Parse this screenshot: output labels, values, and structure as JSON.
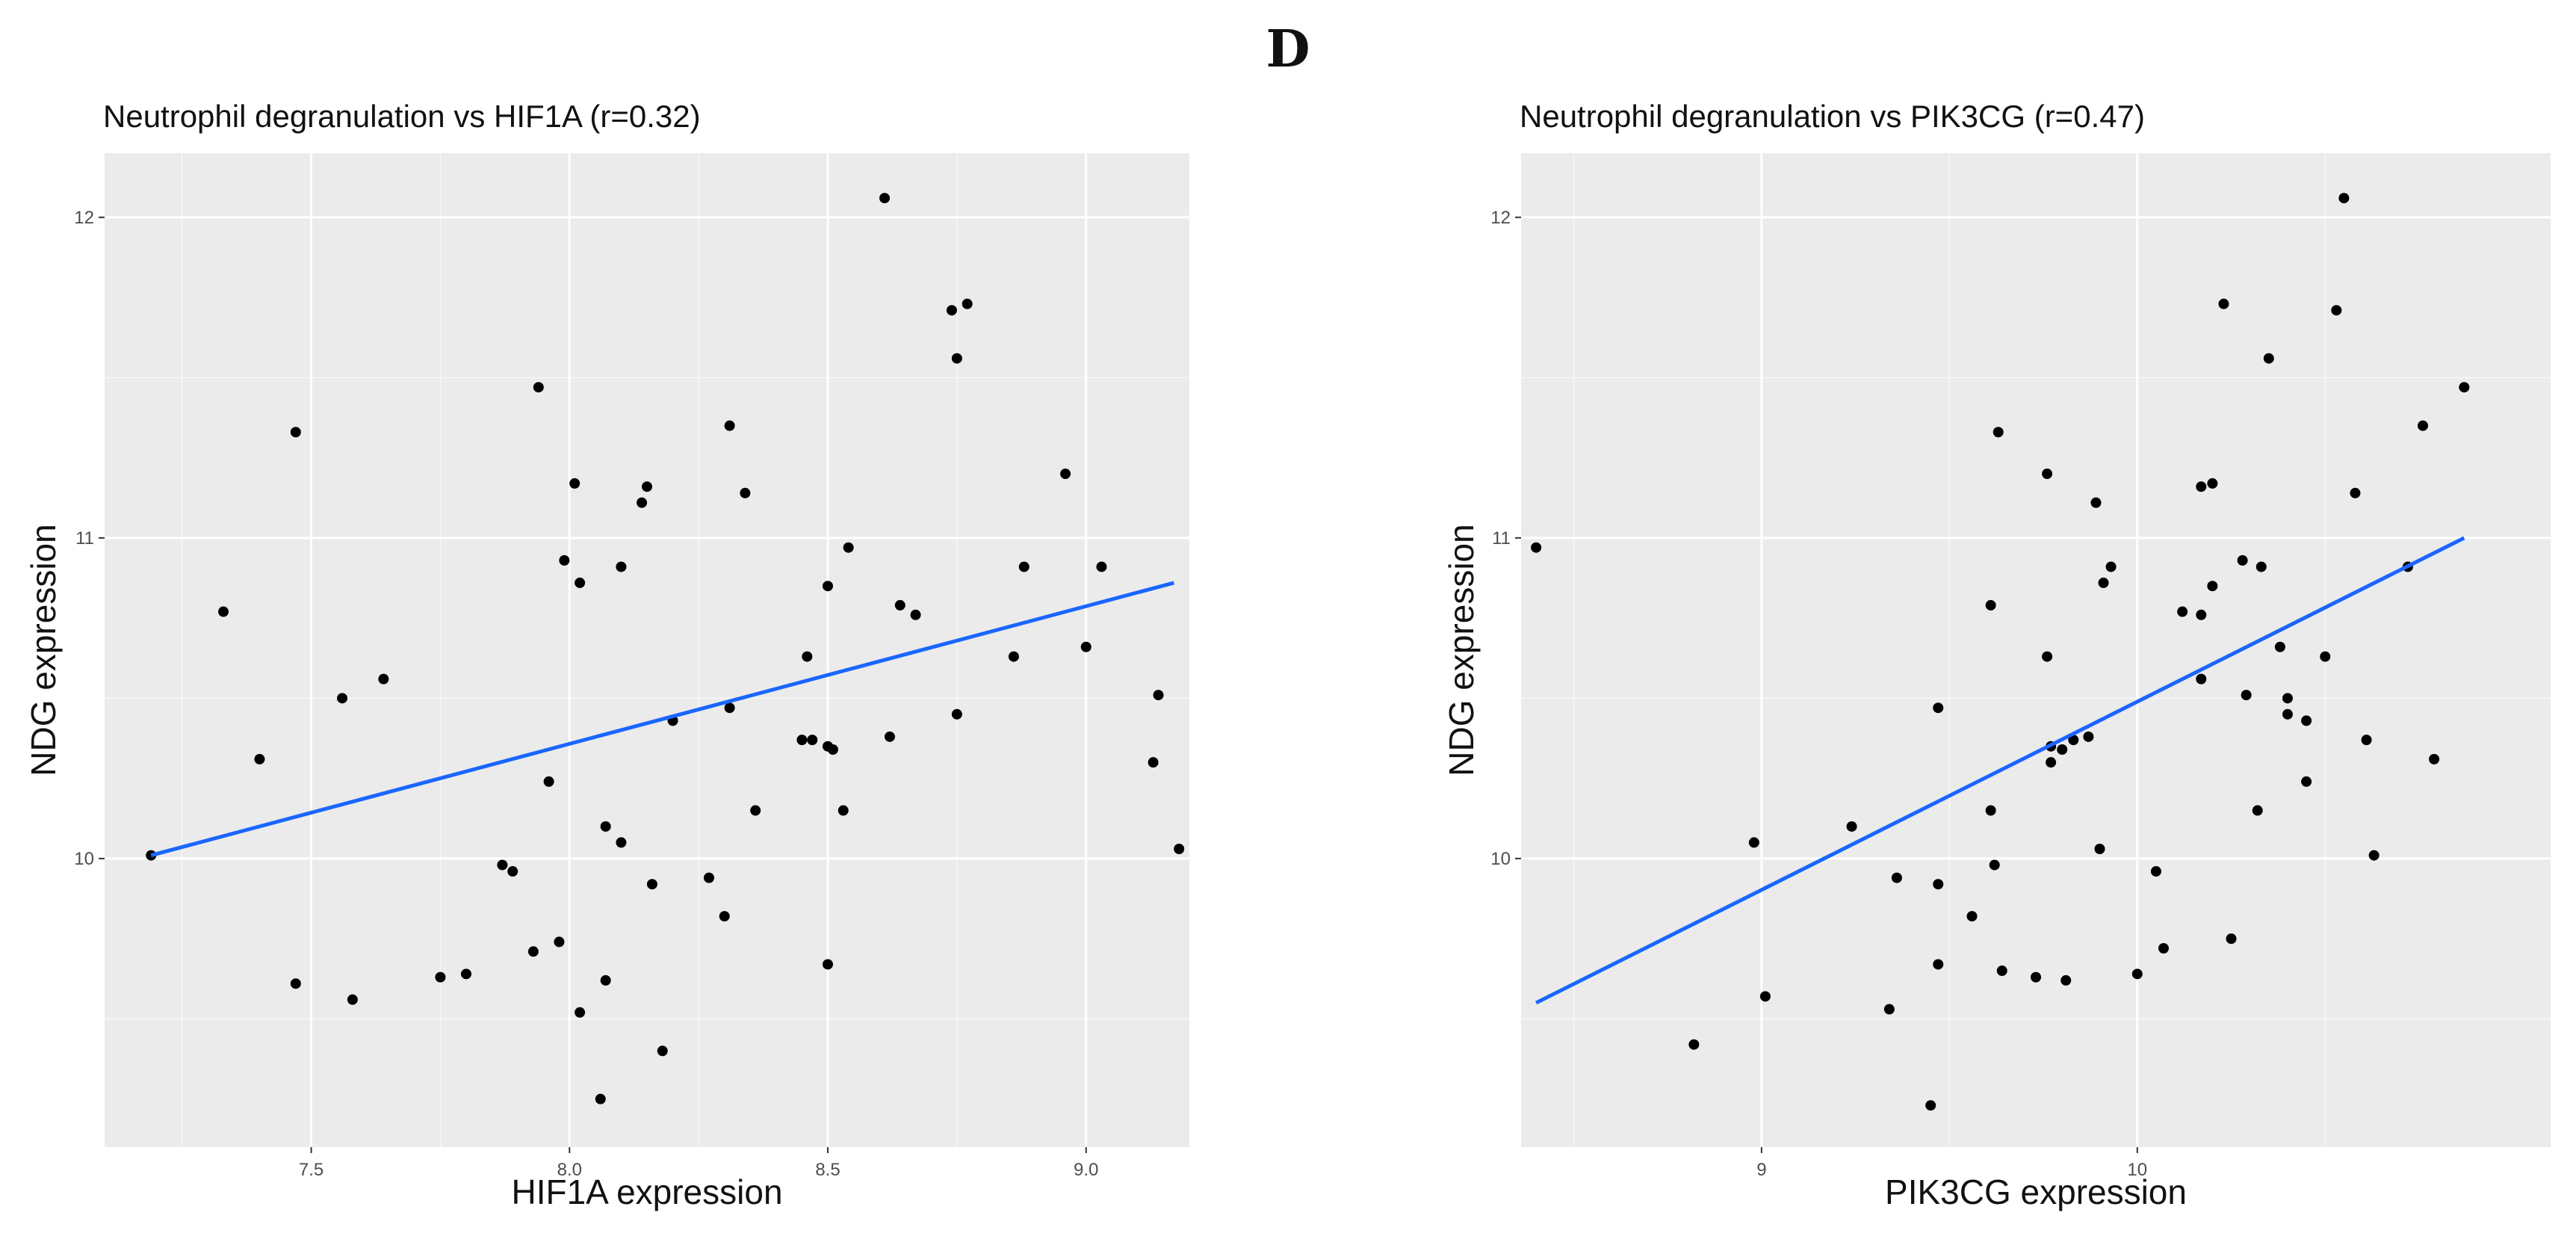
{
  "figure_label": "D",
  "chart_data": [
    {
      "type": "scatter",
      "title": "Neutrophil degranulation vs HIF1A (r=0.32)",
      "xlabel": "HIF1A expression",
      "ylabel": "NDG expression",
      "xlim": [
        7.1,
        9.2
      ],
      "ylim": [
        9.1,
        12.2
      ],
      "xticks": [
        7.5,
        8.0,
        8.5,
        9.0
      ],
      "xtick_labels": [
        "7.5",
        "8.0",
        "8.5",
        "9.0"
      ],
      "yticks": [
        10,
        11,
        12
      ],
      "ytick_labels": [
        "10",
        "11",
        "12"
      ],
      "grid": true,
      "background": "#ebebeb",
      "line_color": "#1a66ff",
      "fit_line": [
        [
          7.19,
          10.01
        ],
        [
          9.17,
          10.86
        ]
      ],
      "points": [
        [
          7.19,
          10.01
        ],
        [
          7.33,
          10.77
        ],
        [
          7.4,
          10.31
        ],
        [
          7.47,
          11.33
        ],
        [
          7.47,
          9.61
        ],
        [
          7.56,
          10.5
        ],
        [
          7.58,
          9.56
        ],
        [
          7.64,
          10.56
        ],
        [
          7.75,
          9.63
        ],
        [
          7.8,
          9.64
        ],
        [
          7.87,
          9.98
        ],
        [
          7.89,
          9.96
        ],
        [
          7.93,
          9.71
        ],
        [
          7.94,
          11.47
        ],
        [
          7.96,
          10.24
        ],
        [
          7.98,
          9.74
        ],
        [
          7.99,
          10.93
        ],
        [
          8.01,
          11.17
        ],
        [
          8.02,
          10.86
        ],
        [
          8.02,
          9.52
        ],
        [
          8.06,
          9.25
        ],
        [
          8.07,
          10.1
        ],
        [
          8.07,
          9.62
        ],
        [
          8.1,
          10.91
        ],
        [
          8.1,
          10.05
        ],
        [
          8.14,
          11.11
        ],
        [
          8.15,
          11.16
        ],
        [
          8.16,
          9.92
        ],
        [
          8.18,
          9.4
        ],
        [
          8.2,
          10.43
        ],
        [
          8.27,
          9.94
        ],
        [
          8.3,
          9.82
        ],
        [
          8.31,
          11.35
        ],
        [
          8.31,
          10.47
        ],
        [
          8.34,
          11.14
        ],
        [
          8.36,
          10.15
        ],
        [
          8.45,
          10.37
        ],
        [
          8.46,
          10.63
        ],
        [
          8.47,
          10.37
        ],
        [
          8.5,
          10.85
        ],
        [
          8.5,
          10.35
        ],
        [
          8.51,
          10.34
        ],
        [
          8.5,
          9.67
        ],
        [
          8.53,
          10.15
        ],
        [
          8.54,
          10.97
        ],
        [
          8.61,
          12.06
        ],
        [
          8.62,
          10.38
        ],
        [
          8.64,
          10.79
        ],
        [
          8.67,
          10.76
        ],
        [
          8.74,
          11.71
        ],
        [
          8.75,
          11.56
        ],
        [
          8.75,
          10.45
        ],
        [
          8.77,
          11.73
        ],
        [
          8.86,
          10.63
        ],
        [
          8.88,
          10.91
        ],
        [
          8.96,
          11.2
        ],
        [
          9.0,
          10.66
        ],
        [
          9.03,
          10.91
        ],
        [
          9.13,
          10.3
        ],
        [
          9.14,
          10.51
        ],
        [
          9.18,
          10.03
        ]
      ]
    },
    {
      "type": "scatter",
      "title": "Neutrophil degranulation vs PIK3CG (r=0.47)",
      "xlabel": "PIK3CG expression",
      "ylabel": "NDG expression",
      "xlim": [
        8.36,
        11.1
      ],
      "ylim": [
        9.1,
        12.2
      ],
      "xticks": [
        9,
        10
      ],
      "xtick_labels": [
        "9",
        "10"
      ],
      "yticks": [
        10,
        11,
        12
      ],
      "ytick_labels": [
        "10",
        "11",
        "12"
      ],
      "grid": true,
      "background": "#ebebeb",
      "line_color": "#1a66ff",
      "fit_line": [
        [
          8.4,
          9.55
        ],
        [
          10.87,
          11.0
        ]
      ],
      "points": [
        [
          8.4,
          10.97
        ],
        [
          8.82,
          9.42
        ],
        [
          8.98,
          10.05
        ],
        [
          9.01,
          9.57
        ],
        [
          9.24,
          10.1
        ],
        [
          9.34,
          9.53
        ],
        [
          9.36,
          9.94
        ],
        [
          9.45,
          9.23
        ],
        [
          9.47,
          10.47
        ],
        [
          9.47,
          9.92
        ],
        [
          9.47,
          9.67
        ],
        [
          9.56,
          9.82
        ],
        [
          9.61,
          10.79
        ],
        [
          9.61,
          10.15
        ],
        [
          9.62,
          9.98
        ],
        [
          9.63,
          11.33
        ],
        [
          9.64,
          9.65
        ],
        [
          9.73,
          9.63
        ],
        [
          9.76,
          11.2
        ],
        [
          9.76,
          10.63
        ],
        [
          9.77,
          10.35
        ],
        [
          9.77,
          10.3
        ],
        [
          9.8,
          10.34
        ],
        [
          9.81,
          9.62
        ],
        [
          9.83,
          10.37
        ],
        [
          9.87,
          10.38
        ],
        [
          9.89,
          11.11
        ],
        [
          9.9,
          10.03
        ],
        [
          9.91,
          10.86
        ],
        [
          9.93,
          10.91
        ],
        [
          10.0,
          9.64
        ],
        [
          10.05,
          9.96
        ],
        [
          10.07,
          9.72
        ],
        [
          10.12,
          10.77
        ],
        [
          10.17,
          10.76
        ],
        [
          10.17,
          10.56
        ],
        [
          10.17,
          11.16
        ],
        [
          10.2,
          11.17
        ],
        [
          10.2,
          10.85
        ],
        [
          10.23,
          11.73
        ],
        [
          10.25,
          9.75
        ],
        [
          10.28,
          10.93
        ],
        [
          10.29,
          10.51
        ],
        [
          10.32,
          10.15
        ],
        [
          10.33,
          10.91
        ],
        [
          10.35,
          11.56
        ],
        [
          10.38,
          10.66
        ],
        [
          10.4,
          10.5
        ],
        [
          10.4,
          10.45
        ],
        [
          10.45,
          10.43
        ],
        [
          10.45,
          10.24
        ],
        [
          10.5,
          10.63
        ],
        [
          10.53,
          11.71
        ],
        [
          10.55,
          12.06
        ],
        [
          10.58,
          11.14
        ],
        [
          10.61,
          10.37
        ],
        [
          10.63,
          10.01
        ],
        [
          10.72,
          10.91
        ],
        [
          10.76,
          11.35
        ],
        [
          10.79,
          10.31
        ],
        [
          10.87,
          11.47
        ]
      ]
    }
  ]
}
